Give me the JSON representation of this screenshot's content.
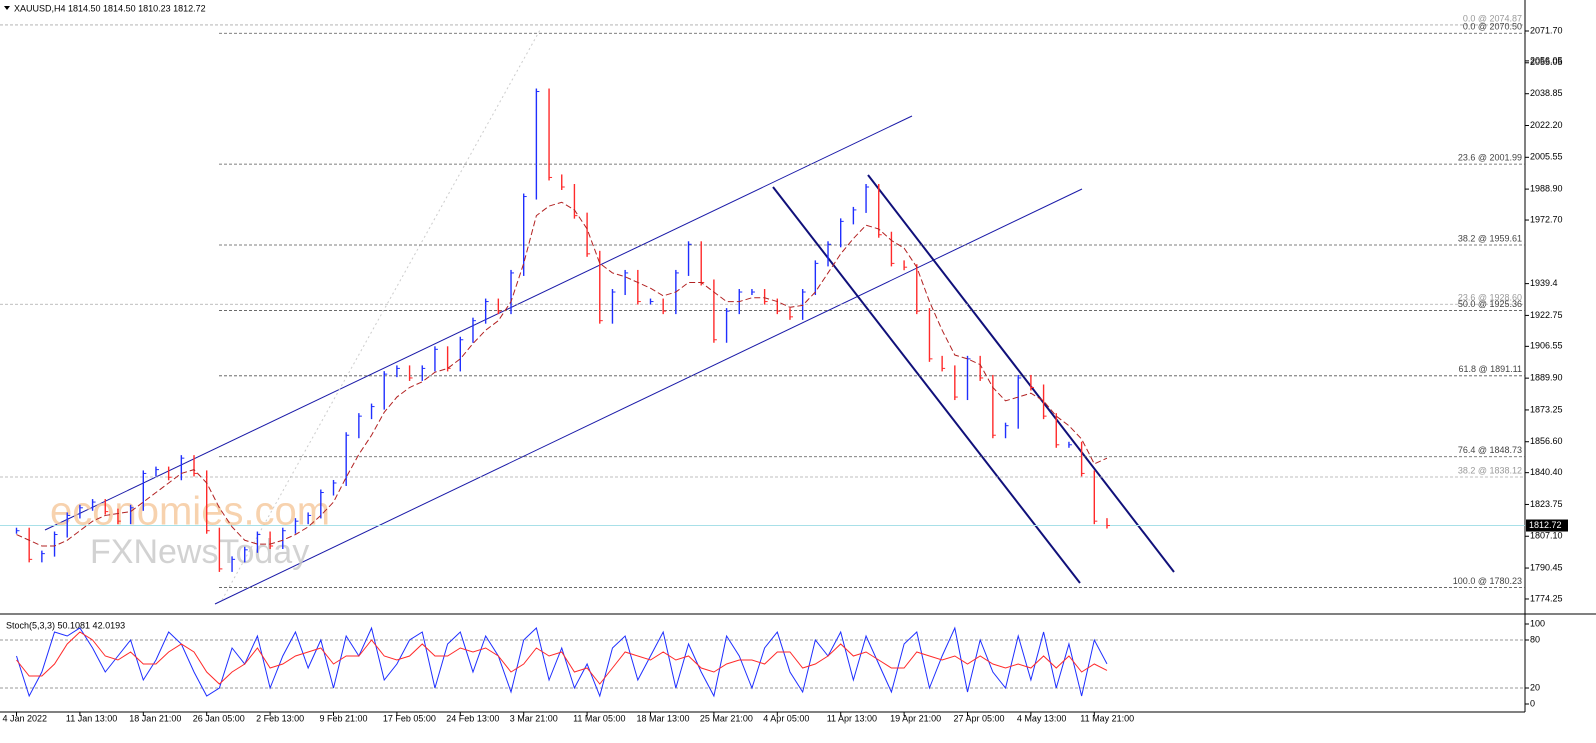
{
  "chart_data": [
    {
      "type": "price",
      "title": "XAUUSD,H4  1814.50 1814.50 1810.23 1812.72",
      "watermark": [
        "economies.com",
        "FXNewsToday"
      ],
      "categories": [
        "4 Jan 2022",
        null,
        null,
        null,
        null,
        "11 Jan 13:00",
        null,
        null,
        null,
        null,
        "18 Jan 21:00",
        null,
        null,
        null,
        null,
        "26 Jan 05:00",
        null,
        null,
        null,
        null,
        "2 Feb 13:00",
        null,
        null,
        null,
        null,
        "9 Feb 21:00",
        null,
        null,
        null,
        null,
        "17 Feb 05:00",
        null,
        null,
        null,
        null,
        "24 Feb 13:00",
        null,
        null,
        null,
        null,
        "3 Mar 21:00",
        null,
        null,
        null,
        null,
        "11 Mar 05:00",
        null,
        null,
        null,
        null,
        "18 Mar 13:00",
        null,
        null,
        null,
        null,
        "25 Mar 21:00",
        null,
        null,
        null,
        null,
        "4 Apr 05:00",
        null,
        null,
        null,
        null,
        "11 Apr 13:00",
        null,
        null,
        null,
        null,
        "19 Apr 21:00",
        null,
        null,
        null,
        null,
        "27 Apr 05:00",
        null,
        null,
        null,
        null,
        "4 May 13:00",
        null,
        null,
        null,
        null,
        "11 May 21:00",
        null
      ],
      "series": [
        {
          "up_color": "#1f2fff",
          "down_color": "#ff2a2a",
          "values": [
            1810,
            1795,
            1798,
            1808,
            1818,
            1822,
            1825,
            1820,
            1815,
            1822,
            1840,
            1842,
            1838,
            1848,
            1840,
            1810,
            1790,
            1795,
            1800,
            1808,
            1802,
            1810,
            1815,
            1818,
            1830,
            1835,
            1860,
            1870,
            1875,
            1892,
            1895,
            1890,
            1895,
            1905,
            1895,
            1910,
            1920,
            1930,
            1925,
            1945,
            1985,
            2040,
            1995,
            1990,
            1975,
            1955,
            1920,
            1935,
            1945,
            1930,
            1930,
            1925,
            1945,
            1960,
            1940,
            1910,
            1925,
            1935,
            1935,
            1930,
            1925,
            1922,
            1935,
            1950,
            1960,
            1972,
            1978,
            1990,
            1965,
            1950,
            1948,
            1925,
            1900,
            1895,
            1880,
            1900,
            1890,
            1860,
            1865,
            1890,
            1885,
            1870,
            1855,
            1855,
            1840,
            1815,
            1812.72
          ]
        },
        {
          "color": "#b22222",
          "values": [
            1808,
            1805,
            1802,
            1802,
            1805,
            1810,
            1815,
            1818,
            1819,
            1820,
            1825,
            1830,
            1835,
            1840,
            1842,
            1835,
            1822,
            1812,
            1805,
            1803,
            1803,
            1805,
            1808,
            1812,
            1818,
            1825,
            1838,
            1850,
            1860,
            1872,
            1880,
            1885,
            1888,
            1893,
            1895,
            1900,
            1908,
            1915,
            1920,
            1930,
            1950,
            1975,
            1980,
            1982,
            1978,
            1968,
            1950,
            1945,
            1943,
            1940,
            1937,
            1933,
            1935,
            1940,
            1940,
            1935,
            1930,
            1930,
            1932,
            1932,
            1930,
            1927,
            1928,
            1935,
            1945,
            1955,
            1963,
            1970,
            1968,
            1962,
            1958,
            1948,
            1930,
            1915,
            1902,
            1900,
            1897,
            1885,
            1878,
            1880,
            1882,
            1878,
            1870,
            1865,
            1858,
            1845,
            1848
          ]
        }
      ],
      "ylim": [
        1767.43,
        2087.93
      ],
      "yticks": [
        {
          "value": 2071.7,
          "label": "2071.70"
        },
        2055.05,
        {
          "value": 2038.85,
          "label": "2038.85"
        },
        {
          "value": 2022.2,
          "label": "2022.20"
        },
        2005.55,
        {
          "value": 1988.9,
          "label": "1988.90"
        },
        {
          "value": 1972.7,
          "label": "1972.70"
        },
        2056.05,
        1939.4,
        1922.75,
        1906.55,
        {
          "value": 1889.9,
          "label": "1889.90"
        },
        1873.25,
        {
          "value": 1856.6,
          "label": "1856.60"
        },
        {
          "value": 1840.4,
          "label": "1840.40"
        },
        1823.75,
        {
          "value": 1807.1,
          "label": "1807.10"
        },
        1790.45,
        1774.25
      ],
      "fib_levels": [
        {
          "label": "0.0 @ 2074.87",
          "value": 2074.87,
          "color": "#aaaaaa"
        },
        {
          "label": "0.0 @ 2070.50",
          "value": 2070.5,
          "color": "#555555"
        },
        {
          "label": "23.6 @ 2001.99",
          "value": 2001.99,
          "color": "#555555"
        },
        {
          "label": "38.2 @ 1959.61",
          "value": 1959.61,
          "color": "#555555"
        },
        {
          "label": "23.6 @ 1928.60",
          "value": 1928.6,
          "color": "#aaaaaa"
        },
        {
          "label": "50.0 @ 1925.36",
          "value": 1925.36,
          "color": "#555555"
        },
        {
          "label": "61.8 @ 1891.11",
          "value": 1891.11,
          "color": "#555555"
        },
        {
          "label": "76.4 @ 1848.73",
          "value": 1848.73,
          "color": "#555555"
        },
        {
          "label": "38.2 @ 1838.12",
          "value": 1838.12,
          "color": "#aaaaaa"
        },
        {
          "label": "100.0 @ 1780.23",
          "value": 1780.23,
          "color": "#555555"
        }
      ],
      "last_price": {
        "value": 1812.72,
        "label": "1812.72",
        "color": "#a8e0e8"
      }
    },
    {
      "type": "stochastic",
      "title": "Stoch(5,3,3) 50.1081 42.0193",
      "series": [
        {
          "color": "#1f2fff",
          "values": [
            60,
            10,
            40,
            90,
            85,
            95,
            70,
            40,
            60,
            80,
            30,
            55,
            90,
            75,
            40,
            10,
            20,
            70,
            50,
            85,
            20,
            60,
            90,
            45,
            80,
            20,
            85,
            60,
            95,
            30,
            50,
            80,
            90,
            20,
            75,
            90,
            40,
            85,
            60,
            15,
            80,
            95,
            30,
            70,
            20,
            50,
            10,
            70,
            85,
            30,
            60,
            90,
            20,
            75,
            40,
            10,
            85,
            60,
            20,
            70,
            90,
            40,
            15,
            80,
            60,
            90,
            30,
            85,
            50,
            15,
            75,
            90,
            20,
            60,
            95,
            15,
            80,
            40,
            20,
            85,
            30,
            90,
            20,
            75,
            10,
            80,
            50.1081
          ]
        },
        {
          "color": "#ff2a2a",
          "values": [
            55,
            35,
            35,
            50,
            75,
            90,
            80,
            60,
            55,
            65,
            50,
            50,
            65,
            75,
            65,
            40,
            25,
            40,
            50,
            70,
            45,
            50,
            60,
            65,
            70,
            50,
            60,
            60,
            80,
            60,
            55,
            60,
            75,
            60,
            60,
            70,
            65,
            70,
            60,
            40,
            50,
            70,
            60,
            65,
            40,
            45,
            25,
            45,
            65,
            60,
            55,
            65,
            55,
            60,
            45,
            40,
            50,
            55,
            55,
            50,
            65,
            65,
            45,
            50,
            60,
            75,
            60,
            65,
            55,
            45,
            45,
            65,
            60,
            55,
            60,
            50,
            60,
            50,
            45,
            50,
            45,
            60,
            45,
            60,
            40,
            50,
            42.0193
          ]
        }
      ],
      "ylim": [
        -10,
        108.75
      ],
      "yticks": [
        100,
        80,
        20,
        0
      ],
      "levels": [
        80,
        20
      ]
    }
  ]
}
